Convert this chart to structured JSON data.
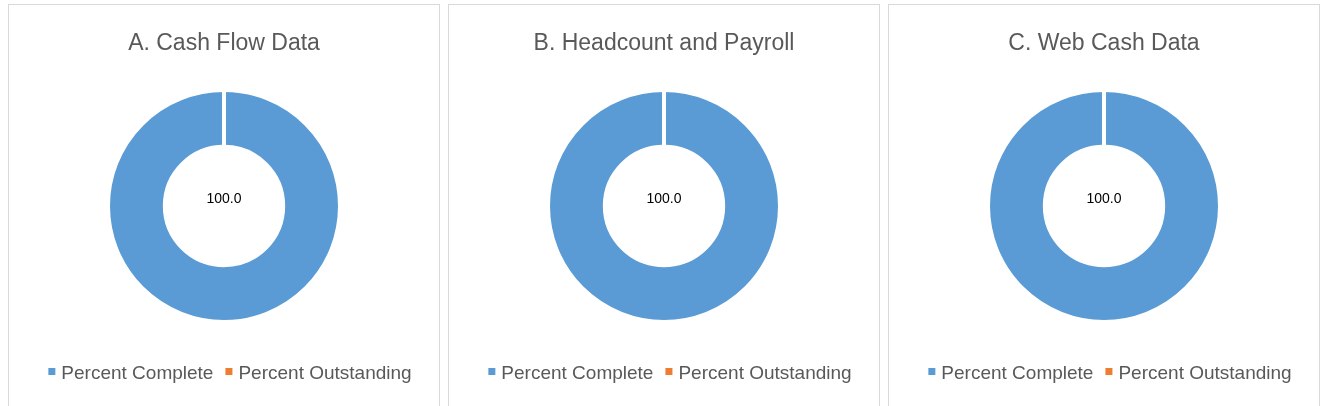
{
  "chart_data": [
    {
      "type": "donut",
      "title": "A. Cash Flow Data",
      "categories": [
        "Percent Complete",
        "Percent Outstanding"
      ],
      "values": [
        100,
        0
      ],
      "colors": [
        "#5b9bd5",
        "#ed7d31"
      ],
      "value_labels": [
        "100.0",
        null
      ],
      "legend": "bottom"
    },
    {
      "type": "donut",
      "title": "B. Headcount and Payroll",
      "categories": [
        "Percent Complete",
        "Percent Outstanding"
      ],
      "values": [
        100,
        0
      ],
      "colors": [
        "#5b9bd5",
        "#ed7d31"
      ],
      "value_labels": [
        "100.0",
        null
      ],
      "legend": "bottom"
    },
    {
      "type": "donut",
      "title": "C. Web Cash Data",
      "categories": [
        "Percent Complete",
        "Percent Outstanding"
      ],
      "values": [
        100,
        0
      ],
      "colors": [
        "#5b9bd5",
        "#ed7d31"
      ],
      "value_labels": [
        "100.0",
        null
      ],
      "legend": "bottom"
    }
  ]
}
